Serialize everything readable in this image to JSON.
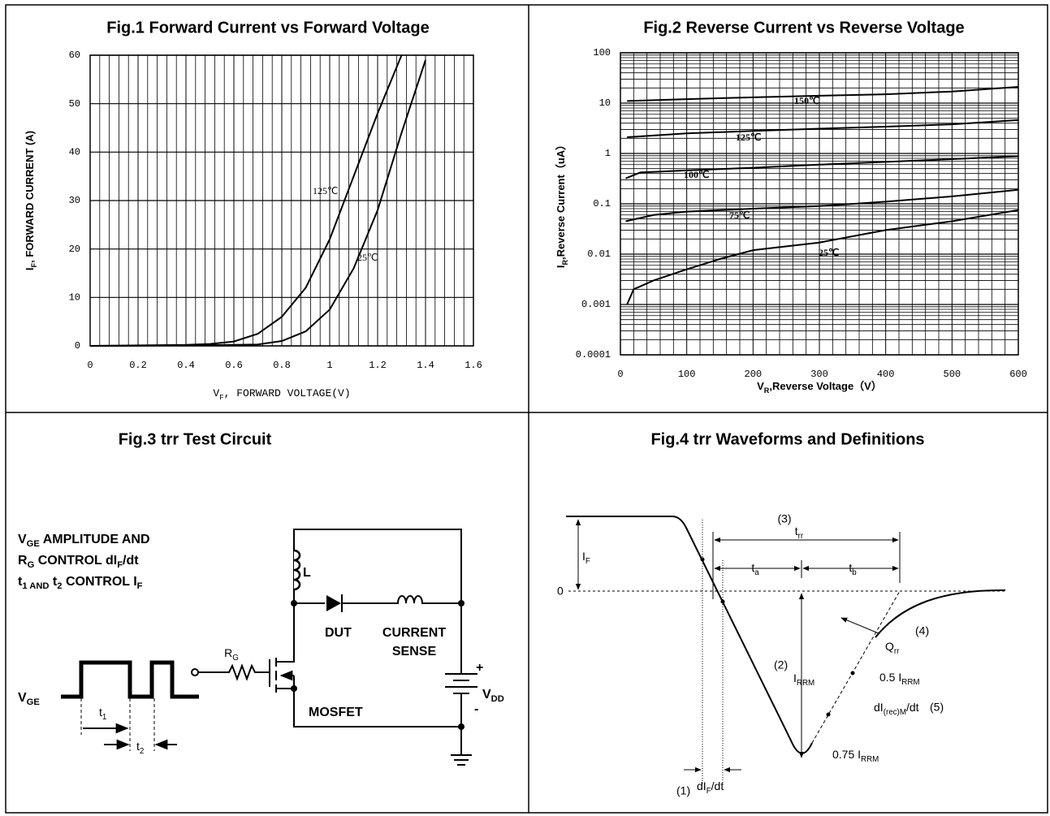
{
  "chart_data": [
    {
      "type": "line",
      "title": "Fig.1  Forward Current vs Forward Voltage",
      "x_label": [
        {
          "t": "V"
        },
        {
          "t": "F",
          "sub": true
        },
        {
          "t": ", FORWARD VOLTAGE(V)"
        }
      ],
      "y_label": [
        {
          "t": "I"
        },
        {
          "t": "F",
          "sub": true
        },
        {
          "t": ", FORWARD  CURRENT (A)"
        }
      ],
      "xlim": [
        0,
        1.6
      ],
      "xticks": [
        0,
        0.2,
        0.4,
        0.6,
        0.8,
        1,
        1.2,
        1.4,
        1.6
      ],
      "ylim": [
        0,
        60
      ],
      "yticks": [
        0,
        10,
        20,
        30,
        40,
        50,
        60
      ],
      "grid": true,
      "minor_x_per_tick": 5,
      "series": [
        {
          "name": "125℃",
          "color": "#000000",
          "x": [
            0,
            0.2,
            0.4,
            0.5,
            0.6,
            0.7,
            0.8,
            0.9,
            1.0,
            1.1,
            1.2,
            1.3
          ],
          "values": [
            0,
            0.1,
            0.2,
            0.4,
            0.9,
            2.5,
            6,
            12,
            22,
            35,
            48,
            60
          ]
        },
        {
          "name": "25℃",
          "color": "#000000",
          "x": [
            0,
            0.2,
            0.4,
            0.6,
            0.7,
            0.8,
            0.9,
            1.0,
            1.1,
            1.2,
            1.3,
            1.4
          ],
          "values": [
            0,
            0.05,
            0.1,
            0.2,
            0.3,
            1,
            3,
            7.5,
            16,
            28,
            44,
            59
          ]
        }
      ]
    },
    {
      "type": "line",
      "title": "Fig.2  Reverse Current vs Reverse Voltage",
      "x_label": [
        {
          "t": "V"
        },
        {
          "t": "R",
          "sub": true
        },
        {
          "t": ",Reverse Voltage（V）"
        }
      ],
      "y_label": [
        {
          "t": "I"
        },
        {
          "t": "R",
          "sub": true
        },
        {
          "t": ",Reverse Current（uA）"
        }
      ],
      "xlim": [
        0,
        600
      ],
      "xticks": [
        0,
        100,
        200,
        300,
        400,
        500,
        600
      ],
      "ylim": [
        0.0001,
        100
      ],
      "yticks": [
        0.0001,
        0.001,
        0.01,
        0.1,
        1,
        10,
        100
      ],
      "yscale": "log",
      "grid": true,
      "minor_x_per_tick": 5,
      "series": [
        {
          "name": "150℃",
          "color": "#000000",
          "x": [
            10,
            100,
            200,
            300,
            400,
            500,
            600
          ],
          "values": [
            11,
            12,
            13,
            14,
            15,
            17,
            21
          ]
        },
        {
          "name": "125℃",
          "color": "#000000",
          "x": [
            10,
            100,
            200,
            300,
            400,
            500,
            600
          ],
          "values": [
            2.1,
            2.5,
            2.8,
            3.1,
            3.4,
            3.8,
            4.6
          ]
        },
        {
          "name": "100℃",
          "color": "#000000",
          "x": [
            8,
            30,
            100,
            200,
            300,
            400,
            500,
            600
          ],
          "values": [
            0.32,
            0.42,
            0.46,
            0.52,
            0.6,
            0.68,
            0.77,
            0.88
          ]
        },
        {
          "name": "75℃",
          "color": "#000000",
          "x": [
            8,
            50,
            100,
            200,
            300,
            400,
            500,
            600
          ],
          "values": [
            0.045,
            0.06,
            0.07,
            0.08,
            0.09,
            0.11,
            0.14,
            0.19
          ]
        },
        {
          "name": "25℃",
          "color": "#000000",
          "x": [
            10,
            20,
            50,
            100,
            150,
            200,
            300,
            400,
            500,
            600
          ],
          "values": [
            0.001,
            0.002,
            0.003,
            0.005,
            0.008,
            0.012,
            0.017,
            0.03,
            0.045,
            0.075
          ]
        }
      ]
    }
  ],
  "figure3": {
    "title": "Fig.3  trr Test Circuit",
    "notes": [
      [
        {
          "t": "V"
        },
        {
          "t": "GE",
          "sub": true
        },
        {
          "t": " AMPLITUDE AND"
        }
      ],
      [
        {
          "t": "R"
        },
        {
          "t": "G",
          "sub": true
        },
        {
          "t": " CONTROL dI"
        },
        {
          "t": "F",
          "sub": true
        },
        {
          "t": "/dt"
        }
      ],
      [
        {
          "t": "t"
        },
        {
          "t": "1 AND",
          "sub": true
        },
        {
          "t": " t"
        },
        {
          "t": "2",
          "sub": true
        },
        {
          "t": " CONTROL I"
        },
        {
          "t": "F",
          "sub": true
        }
      ]
    ],
    "inductor": "L",
    "dut": "DUT",
    "sense": [
      "CURRENT",
      "SENSE"
    ],
    "gate_resistor": [
      {
        "t": "R"
      },
      {
        "t": "G",
        "sub": true
      }
    ],
    "gate_signal": [
      {
        "t": "V"
      },
      {
        "t": "GE",
        "sub": true
      }
    ],
    "switch": "MOSFET",
    "supply": [
      {
        "t": "V"
      },
      {
        "t": "DD",
        "sub": true
      }
    ],
    "plus": "+",
    "minus": "-",
    "t1": [
      {
        "t": "t"
      },
      {
        "t": "1",
        "sub": true
      }
    ],
    "t2": [
      {
        "t": "t"
      },
      {
        "t": "2",
        "sub": true
      }
    ]
  },
  "figure4": {
    "title": "Fig.4 trr Waveforms and Definitions",
    "forward_current": [
      {
        "t": "I"
      },
      {
        "t": "F",
        "sub": true
      }
    ],
    "zero": "0",
    "trr_marker": "(3)",
    "trr": [
      {
        "t": "t"
      },
      {
        "t": "rr",
        "sub": true
      }
    ],
    "ta": [
      {
        "t": "t"
      },
      {
        "t": "a",
        "sub": true
      }
    ],
    "tb": [
      {
        "t": "t"
      },
      {
        "t": "b",
        "sub": true
      }
    ],
    "irrm_marker": "(2)",
    "irrm": [
      {
        "t": "I"
      },
      {
        "t": "RRM",
        "sub": true
      }
    ],
    "qrr": [
      {
        "t": "Q"
      },
      {
        "t": "rr",
        "sub": true
      }
    ],
    "qrr_marker": "(4)",
    "half_irrm": [
      {
        "t": "0.5 I"
      },
      {
        "t": "RRM",
        "sub": true
      }
    ],
    "slope_rec": [
      {
        "t": "dI"
      },
      {
        "t": "(rec)M",
        "sub": true
      },
      {
        "t": "/dt"
      }
    ],
    "slope_rec_marker": "(5)",
    "three_quarter_irrm": [
      {
        "t": "0.75 I"
      },
      {
        "t": "RRM",
        "sub": true
      }
    ],
    "slope_marker": "(1)",
    "slope": [
      {
        "t": "dI"
      },
      {
        "t": "F",
        "sub": true
      },
      {
        "t": "/dt"
      }
    ]
  }
}
